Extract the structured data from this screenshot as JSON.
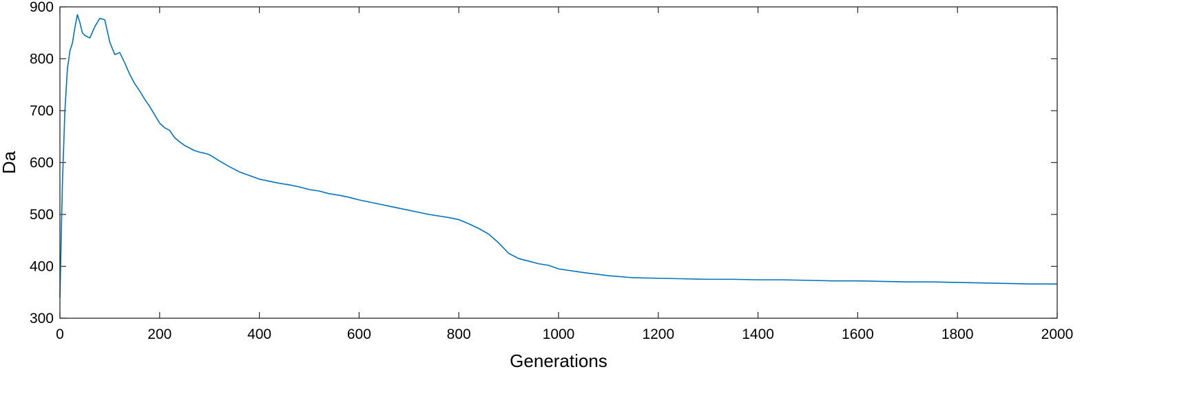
{
  "chart_data": {
    "type": "line",
    "title": "",
    "xlabel": "Generations",
    "ylabel": "Da",
    "xlim": [
      0,
      2000
    ],
    "ylim": [
      300,
      900
    ],
    "xticks": [
      0,
      200,
      400,
      600,
      800,
      1000,
      1200,
      1400,
      1600,
      1800,
      2000
    ],
    "yticks": [
      300,
      400,
      500,
      600,
      700,
      800,
      900
    ],
    "xtick_labels": [
      "0",
      "200",
      "400",
      "600",
      "800",
      "1000",
      "1200",
      "1400",
      "1600",
      "1800",
      "2000"
    ],
    "ytick_labels": [
      "300",
      "400",
      "500",
      "600",
      "700",
      "800",
      "900"
    ],
    "grid": false,
    "box": true,
    "series": [
      {
        "color": "#0072BD",
        "x": [
          0,
          5,
          10,
          15,
          20,
          25,
          30,
          35,
          40,
          45,
          50,
          60,
          70,
          80,
          90,
          100,
          110,
          120,
          130,
          140,
          150,
          160,
          170,
          180,
          190,
          200,
          210,
          220,
          230,
          240,
          250,
          260,
          270,
          280,
          290,
          300,
          320,
          340,
          360,
          380,
          400,
          420,
          440,
          460,
          480,
          500,
          520,
          540,
          560,
          580,
          600,
          620,
          640,
          660,
          680,
          700,
          720,
          740,
          760,
          780,
          800,
          820,
          840,
          860,
          880,
          900,
          920,
          940,
          960,
          980,
          1000,
          1050,
          1100,
          1150,
          1200,
          1250,
          1300,
          1350,
          1400,
          1450,
          1500,
          1550,
          1600,
          1650,
          1700,
          1750,
          1800,
          1850,
          1900,
          1950,
          2000
        ],
        "y": [
          340,
          560,
          700,
          780,
          815,
          830,
          860,
          885,
          870,
          850,
          845,
          840,
          862,
          878,
          875,
          832,
          808,
          812,
          792,
          770,
          752,
          738,
          722,
          708,
          692,
          676,
          667,
          662,
          648,
          640,
          633,
          628,
          623,
          620,
          618,
          615,
          603,
          592,
          582,
          575,
          568,
          564,
          560,
          557,
          553,
          548,
          545,
          540,
          537,
          533,
          528,
          524,
          520,
          516,
          512,
          508,
          504,
          500,
          497,
          494,
          490,
          482,
          473,
          462,
          445,
          425,
          415,
          410,
          405,
          402,
          395,
          388,
          382,
          378,
          377,
          376,
          375,
          375,
          374,
          374,
          373,
          372,
          372,
          371,
          370,
          370,
          369,
          368,
          367,
          366,
          366
        ]
      }
    ]
  }
}
